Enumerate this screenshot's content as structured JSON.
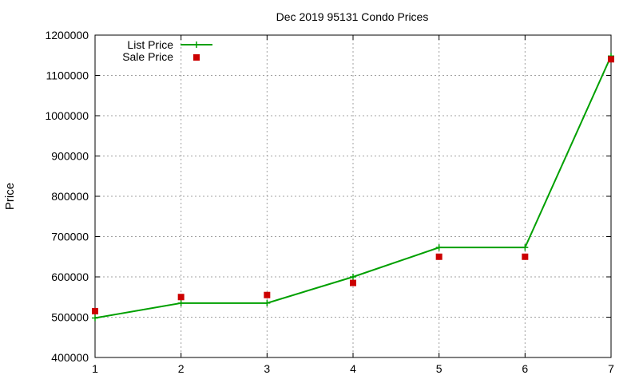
{
  "chart_data": {
    "type": "line",
    "title": "Dec 2019 95131 Condo Prices",
    "xlabel": "",
    "ylabel": "Price",
    "xlim": [
      1,
      7
    ],
    "ylim": [
      400000,
      1200000
    ],
    "x_ticks": [
      1,
      2,
      3,
      4,
      5,
      6,
      7
    ],
    "y_ticks": [
      400000,
      500000,
      600000,
      700000,
      800000,
      900000,
      1000000,
      1100000,
      1200000
    ],
    "grid": true,
    "legend_position": "top-left",
    "series": [
      {
        "name": "List Price",
        "style": "lines+points",
        "marker": "plus",
        "color": "#00a000",
        "x": [
          1,
          2,
          3,
          4,
          5,
          6,
          7
        ],
        "values": [
          498000,
          535000,
          535000,
          600000,
          673000,
          673000,
          1148000
        ]
      },
      {
        "name": "Sale Price",
        "style": "points",
        "marker": "square",
        "color": "#cc0000",
        "x": [
          1,
          2,
          3,
          4,
          5,
          6,
          7
        ],
        "values": [
          515000,
          550000,
          555000,
          585000,
          650000,
          650000,
          1140000
        ]
      }
    ]
  }
}
